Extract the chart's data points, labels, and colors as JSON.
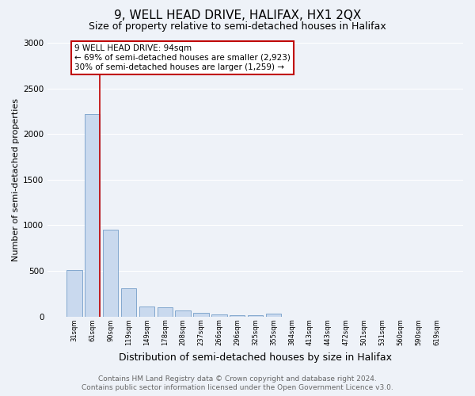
{
  "title": "9, WELL HEAD DRIVE, HALIFAX, HX1 2QX",
  "subtitle": "Size of property relative to semi-detached houses in Halifax",
  "xlabel": "Distribution of semi-detached houses by size in Halifax",
  "ylabel": "Number of semi-detached properties",
  "footer1": "Contains HM Land Registry data © Crown copyright and database right 2024.",
  "footer2": "Contains public sector information licensed under the Open Government Licence v3.0.",
  "bar_labels": [
    "31sqm",
    "61sqm",
    "90sqm",
    "119sqm",
    "149sqm",
    "178sqm",
    "208sqm",
    "237sqm",
    "266sqm",
    "296sqm",
    "325sqm",
    "355sqm",
    "384sqm",
    "413sqm",
    "443sqm",
    "472sqm",
    "501sqm",
    "531sqm",
    "560sqm",
    "590sqm",
    "619sqm"
  ],
  "bar_values": [
    505,
    2220,
    950,
    305,
    112,
    100,
    62,
    42,
    22,
    15,
    10,
    30,
    0,
    0,
    0,
    0,
    0,
    0,
    0,
    0,
    0
  ],
  "bar_color": "#c9d9ee",
  "bar_edge_color": "#6090c0",
  "highlight_bar_index": 1,
  "highlight_color": "#c00000",
  "annotation_text": "9 WELL HEAD DRIVE: 94sqm\n← 69% of semi-detached houses are smaller (2,923)\n30% of semi-detached houses are larger (1,259) →",
  "annotation_box_color": "#ffffff",
  "annotation_box_edge_color": "#c00000",
  "ylim": [
    0,
    3000
  ],
  "yticks": [
    0,
    500,
    1000,
    1500,
    2000,
    2500,
    3000
  ],
  "title_fontsize": 11,
  "subtitle_fontsize": 9,
  "xlabel_fontsize": 9,
  "ylabel_fontsize": 8,
  "footer_fontsize": 6.5,
  "annotation_fontsize": 7.5,
  "background_color": "#eef2f8",
  "grid_color": "#ffffff",
  "figsize": [
    6.0,
    5.0
  ],
  "dpi": 100
}
